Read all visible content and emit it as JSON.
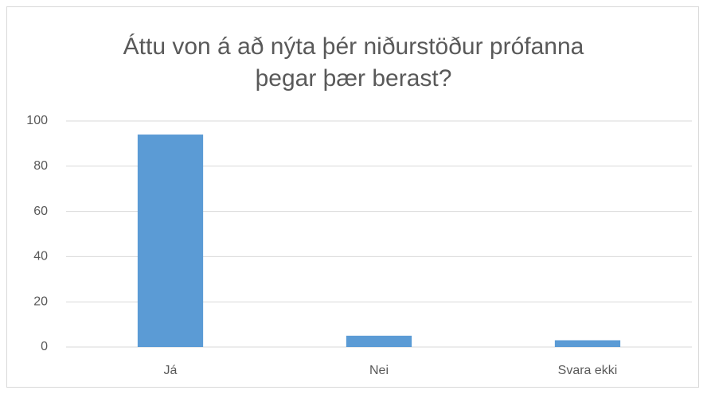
{
  "chart_data": {
    "type": "bar",
    "title": [
      "Áttu von á að nýta þér niðurstöður prófanna",
      "þegar þær berast?"
    ],
    "categories": [
      "Já",
      "Nei",
      "Svara ekki"
    ],
    "values": [
      94,
      5,
      3
    ],
    "color": "#5b9bd5",
    "ylim": [
      0,
      100
    ],
    "yticks": [
      0,
      20,
      40,
      60,
      80,
      100
    ],
    "grid": true
  }
}
